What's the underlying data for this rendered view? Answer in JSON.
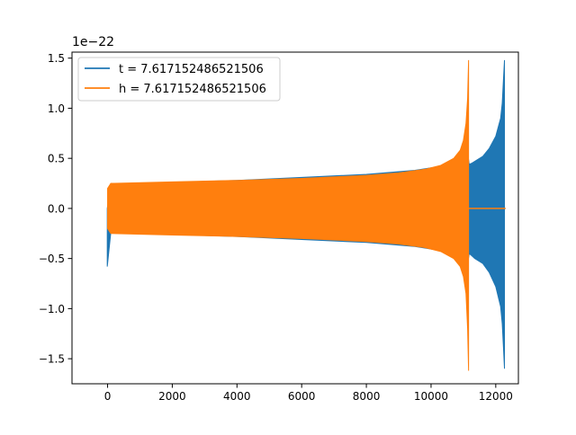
{
  "chart_data": {
    "type": "line",
    "title": "",
    "xlabel": "",
    "ylabel": "",
    "y_offset_label": "1e−22",
    "xlim": [
      -1100,
      12700
    ],
    "ylim": [
      -1.75,
      1.56
    ],
    "xticks": [
      0,
      2000,
      4000,
      6000,
      8000,
      10000,
      12000
    ],
    "xtick_labels": [
      "0",
      "2000",
      "4000",
      "6000",
      "8000",
      "10000",
      "12000"
    ],
    "yticks": [
      -1.5,
      -1.0,
      -0.5,
      0.0,
      0.5,
      1.0,
      1.5
    ],
    "ytick_labels": [
      "−1.5",
      "−1.0",
      "−0.5",
      "0.0",
      "0.5",
      "1.0",
      "1.5"
    ],
    "grid": false,
    "legend_position": "top-left",
    "series": [
      {
        "name": "t = 7.617152486521506",
        "color": "#1f77b4",
        "envelope_x": [
          -10,
          100,
          2000,
          4000,
          6000,
          8000,
          9500,
          10500,
          10900,
          11100,
          11180,
          11250,
          11350,
          11600,
          11800,
          12000,
          12150,
          12200,
          12240,
          12270
        ],
        "envelope_upper": [
          0.0,
          0.24,
          0.26,
          0.28,
          0.31,
          0.34,
          0.38,
          0.43,
          0.5,
          0.62,
          0.44,
          0.45,
          0.47,
          0.52,
          0.6,
          0.72,
          0.9,
          1.05,
          1.3,
          1.48
        ],
        "envelope_lower": [
          -0.58,
          -0.24,
          -0.26,
          -0.28,
          -0.31,
          -0.34,
          -0.38,
          -0.43,
          -0.5,
          -0.62,
          -0.45,
          -0.47,
          -0.5,
          -0.55,
          -0.64,
          -0.78,
          -0.98,
          -1.15,
          -1.4,
          -1.6
        ],
        "tail": [
          12270,
          12300
        ]
      },
      {
        "name": "h = 7.617152486521506",
        "color": "#ff7f0e",
        "envelope_x": [
          0,
          100,
          2000,
          4000,
          6000,
          8000,
          9000,
          9800,
          10300,
          10700,
          10900,
          11000,
          11080,
          11130,
          11160
        ],
        "envelope_upper": [
          0.2,
          0.25,
          0.265,
          0.28,
          0.3,
          0.33,
          0.355,
          0.39,
          0.43,
          0.5,
          0.58,
          0.68,
          0.85,
          1.1,
          1.48
        ],
        "envelope_lower": [
          -0.2,
          -0.25,
          -0.265,
          -0.28,
          -0.3,
          -0.33,
          -0.355,
          -0.39,
          -0.43,
          -0.5,
          -0.58,
          -0.68,
          -0.85,
          -1.2,
          -1.62
        ],
        "tail": [
          11160,
          12300
        ]
      }
    ]
  }
}
